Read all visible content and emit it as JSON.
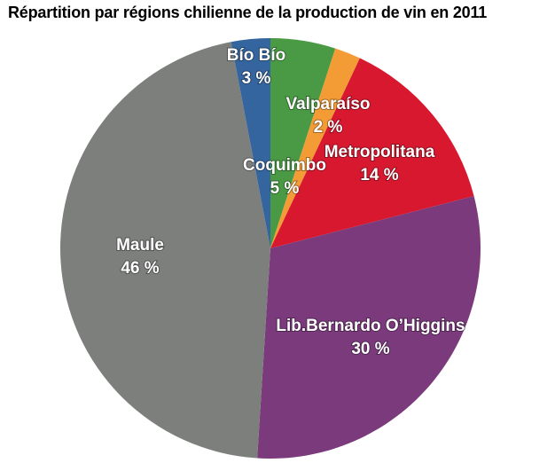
{
  "chart_data": {
    "type": "pie",
    "title": "Répartition par régions chilienne de la production de vin en 2011",
    "slices": [
      {
        "label": "Coquimbo",
        "value": 5,
        "value_label": "5 %",
        "color": "#4a9a45"
      },
      {
        "label": "Valparaíso",
        "value": 2,
        "value_label": "2 %",
        "color": "#f39c35"
      },
      {
        "label": "Metropolitana",
        "value": 14,
        "value_label": "14 %",
        "color": "#d8182f"
      },
      {
        "label": "Lib.Bernardo O’Higgins",
        "value": 30,
        "value_label": "30 %",
        "color": "#7a3a7c"
      },
      {
        "label": "Maule",
        "value": 46,
        "value_label": "46 %",
        "color": "#7d7f7d"
      },
      {
        "label": "Bío Bío",
        "value": 3,
        "value_label": "3 %",
        "color": "#35659f"
      }
    ],
    "start_angle": "12 o'clock",
    "direction": "clockwise",
    "legend": "none"
  }
}
